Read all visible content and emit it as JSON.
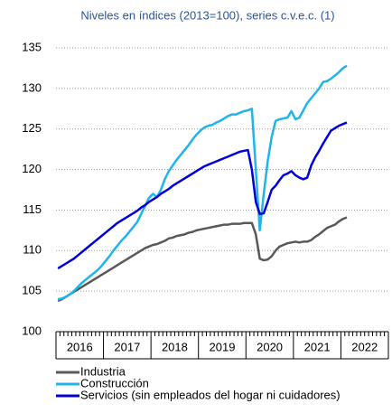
{
  "chart_data": {
    "type": "line",
    "title": "Niveles en índices (2013=100), series c.v.e.c. (1)",
    "categories": [
      null,
      null,
      null,
      null,
      null,
      null,
      null,
      null,
      null,
      null,
      null,
      null,
      null,
      null,
      null,
      null,
      null,
      null,
      null,
      null,
      null,
      null,
      null,
      null,
      null,
      null,
      null,
      null,
      null,
      null,
      null,
      null,
      null,
      null,
      null,
      null,
      null,
      null,
      null,
      null,
      null,
      null,
      null,
      null,
      null,
      null,
      null,
      null,
      null,
      null,
      null,
      null,
      null,
      null,
      null,
      null,
      null,
      null,
      null,
      null,
      null,
      null,
      null,
      null,
      null,
      null,
      null,
      null,
      null,
      null,
      null,
      null,
      null,
      null,
      null,
      null,
      null,
      null,
      null,
      null,
      null,
      null,
      null,
      null
    ],
    "year_labels": [
      "2016",
      "2017",
      "2018",
      "2019",
      "2020",
      "2021",
      "2022"
    ],
    "series": [
      {
        "name": "Industria",
        "color": "#595959",
        "values": [
          103.8,
          104.0,
          104.3,
          104.6,
          104.9,
          105.2,
          105.5,
          105.8,
          106.1,
          106.4,
          106.7,
          107.0,
          107.3,
          107.6,
          107.9,
          108.2,
          108.5,
          108.8,
          109.1,
          109.4,
          109.7,
          110.0,
          110.3,
          110.5,
          110.7,
          110.8,
          111.0,
          111.2,
          111.5,
          111.6,
          111.8,
          111.9,
          112.0,
          112.2,
          112.3,
          112.5,
          112.6,
          112.7,
          112.8,
          112.9,
          113.0,
          113.1,
          113.2,
          113.2,
          113.3,
          113.3,
          113.3,
          113.4,
          113.4,
          113.4,
          112.0,
          109.0,
          108.8,
          108.9,
          109.3,
          110.0,
          110.5,
          110.7,
          110.9,
          111.0,
          111.1,
          111.0,
          111.1,
          111.1,
          111.3,
          111.7,
          112.0,
          112.4,
          112.8,
          113.0,
          113.2,
          113.6,
          113.9,
          114.1,
          null,
          null,
          null,
          null,
          null,
          null,
          null,
          null,
          null,
          null
        ]
      },
      {
        "name": "Construcción",
        "color": "#1fb4ea",
        "values": [
          104.0,
          104.1,
          104.3,
          104.6,
          105.0,
          105.5,
          106.0,
          106.4,
          106.8,
          107.2,
          107.6,
          108.1,
          108.7,
          109.3,
          110.0,
          110.6,
          111.2,
          111.7,
          112.3,
          112.9,
          113.5,
          114.5,
          115.5,
          116.5,
          117.0,
          116.6,
          117.5,
          118.8,
          119.8,
          120.5,
          121.2,
          121.8,
          122.4,
          123.0,
          123.7,
          124.3,
          124.8,
          125.2,
          125.4,
          125.5,
          125.8,
          126.0,
          126.3,
          126.6,
          126.8,
          126.8,
          127.0,
          127.2,
          127.3,
          127.5,
          120.0,
          112.5,
          117.0,
          121.0,
          124.0,
          126.0,
          126.2,
          126.3,
          126.4,
          127.2,
          126.2,
          126.4,
          127.3,
          128.2,
          128.8,
          129.4,
          130.0,
          130.8,
          130.9,
          131.2,
          131.6,
          132.0,
          132.5,
          132.8,
          null,
          null,
          null,
          null,
          null,
          null,
          null,
          null,
          null,
          null
        ]
      },
      {
        "name": "Servicios (sin empleados del hogar ni cuidadores)",
        "color": "#0000dd",
        "values": [
          107.8,
          108.1,
          108.4,
          108.7,
          109.0,
          109.4,
          109.8,
          110.2,
          110.6,
          111.0,
          111.4,
          111.8,
          112.2,
          112.6,
          113.0,
          113.4,
          113.7,
          114.0,
          114.3,
          114.6,
          114.9,
          115.3,
          115.6,
          116.0,
          116.3,
          116.6,
          117.0,
          117.3,
          117.6,
          118.0,
          118.3,
          118.6,
          118.9,
          119.2,
          119.5,
          119.8,
          120.1,
          120.4,
          120.6,
          120.8,
          121.0,
          121.2,
          121.4,
          121.6,
          121.8,
          122.0,
          122.2,
          122.3,
          122.4,
          120.0,
          116.0,
          114.5,
          114.6,
          116.0,
          117.5,
          118.0,
          118.7,
          119.3,
          119.5,
          119.8,
          119.3,
          119.0,
          118.8,
          119.0,
          120.5,
          121.5,
          122.3,
          123.2,
          124.0,
          124.8,
          125.1,
          125.4,
          125.6,
          125.8,
          null,
          null,
          null,
          null,
          null,
          null,
          null,
          null,
          null,
          null
        ]
      }
    ],
    "ylim": [
      100,
      135
    ],
    "yticks": [
      100,
      105,
      110,
      115,
      120,
      125,
      130,
      135
    ],
    "grid": true,
    "legend": "bottom"
  }
}
